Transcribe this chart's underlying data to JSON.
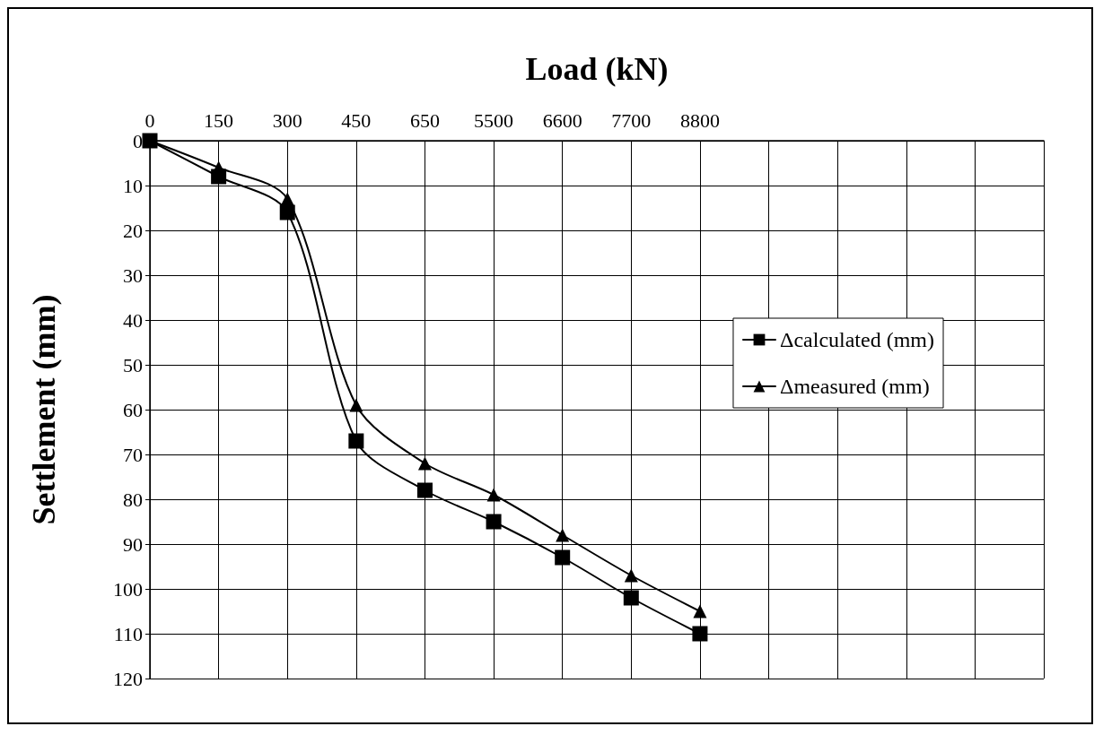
{
  "chart_data": {
    "type": "line",
    "xlabel": "Load (kN)",
    "ylabel": "Settlement (mm)",
    "categories": [
      "0",
      "150",
      "300",
      "450",
      "650",
      "5500",
      "6600",
      "7700",
      "8800",
      null,
      null,
      null,
      null,
      null
    ],
    "series": [
      {
        "name": "Δcalculated (mm)",
        "color": "#000000",
        "marker": "square",
        "values": [
          0,
          8,
          16,
          67,
          78,
          85,
          93,
          102,
          110,
          null,
          null,
          null,
          null,
          null
        ]
      },
      {
        "name": "Δmeasured (mm)",
        "color": "#000000",
        "marker": "triangle",
        "values": [
          0,
          6,
          13,
          59,
          72,
          79,
          88,
          97,
          105,
          null,
          null,
          null,
          null,
          null
        ]
      }
    ],
    "ylim": [
      120,
      0
    ],
    "yticks": [
      0,
      10,
      20,
      30,
      40,
      50,
      60,
      70,
      80,
      90,
      100,
      110,
      120
    ],
    "grid": true,
    "legend": "right",
    "line_style": "solid"
  }
}
